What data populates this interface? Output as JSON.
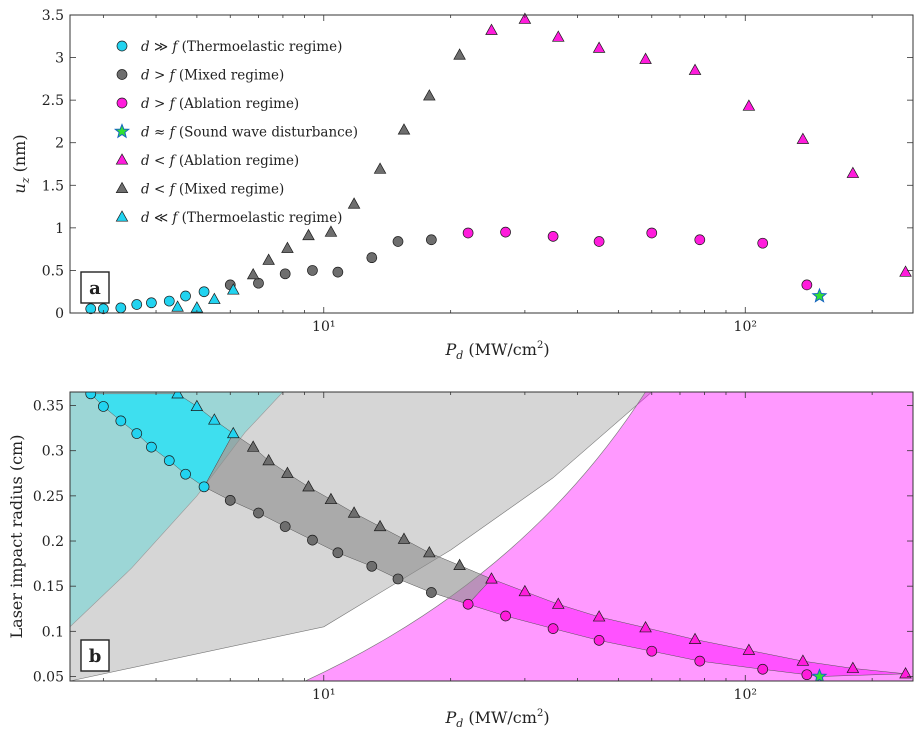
{
  "chart_data": [
    {
      "panel": "a",
      "type": "scatter",
      "xscale": "log",
      "xlim": [
        2.5,
        250
      ],
      "ylim": [
        0,
        3.5
      ],
      "xlabel": "P_d (MW/cm²)",
      "ylabel": "u_z (nm)",
      "xticks": [
        {
          "value": 10,
          "label": "10¹"
        },
        {
          "value": 100,
          "label": "10²"
        }
      ],
      "yticks": [
        0,
        0.5,
        1,
        1.5,
        2,
        2.5,
        3,
        3.5
      ],
      "ytick_labels": [
        "0",
        "0.5",
        "1",
        "1.5",
        "2",
        "2.5",
        "3",
        "3.5"
      ],
      "legend_position": "upper-left",
      "series": [
        {
          "name": "d ≫ f (Thermoelastic regime)",
          "marker": "circle",
          "color": "#22d3f0",
          "x": [
            2.8,
            3.0,
            3.3,
            3.6,
            3.9,
            4.3,
            4.7,
            5.2
          ],
          "y": [
            0.05,
            0.05,
            0.06,
            0.1,
            0.12,
            0.14,
            0.2,
            0.25
          ]
        },
        {
          "name": "d > f (Mixed regime)",
          "marker": "circle",
          "color": "#6e6e6e",
          "x": [
            6.0,
            7.0,
            8.1,
            9.4,
            10.8,
            13.0,
            15.0,
            18.0
          ],
          "y": [
            0.33,
            0.35,
            0.46,
            0.5,
            0.48,
            0.65,
            0.84,
            0.86
          ]
        },
        {
          "name": "d > f (Ablation regime)",
          "marker": "circle",
          "color": "#ff1cdc",
          "x": [
            22.0,
            27.0,
            35.0,
            45.0,
            60.0,
            78.0,
            110.0,
            140.0
          ],
          "y": [
            0.94,
            0.95,
            0.9,
            0.84,
            0.94,
            0.86,
            0.82,
            0.33
          ]
        },
        {
          "name": "d ≈ f (Sound wave disturbance)",
          "marker": "star",
          "color": "#33e033",
          "x": [
            150.0
          ],
          "y": [
            0.2
          ]
        },
        {
          "name": "d < f (Ablation regime)",
          "marker": "triangle",
          "color": "#ff1cdc",
          "x": [
            25.0,
            30.0,
            36.0,
            45.0,
            58.0,
            76.0,
            102.0,
            137.0,
            180.0,
            240.0
          ],
          "y": [
            3.32,
            3.45,
            3.24,
            3.11,
            2.98,
            2.85,
            2.43,
            2.04,
            1.64,
            0.48
          ]
        },
        {
          "name": "d < f (Mixed regime)",
          "marker": "triangle",
          "color": "#6e6e6e",
          "x": [
            6.8,
            7.4,
            8.2,
            9.2,
            10.4,
            11.8,
            13.6,
            15.5,
            17.8,
            21.0
          ],
          "y": [
            0.45,
            0.62,
            0.76,
            0.91,
            0.95,
            1.28,
            1.69,
            2.15,
            2.55,
            3.03
          ]
        },
        {
          "name": "d ≪ f (Thermoelastic regime)",
          "marker": "triangle",
          "color": "#22d3f0",
          "x": [
            4.5,
            5.0,
            5.5,
            6.1
          ],
          "y": [
            0.07,
            0.06,
            0.16,
            0.27
          ]
        }
      ]
    },
    {
      "panel": "b",
      "type": "scatter",
      "xscale": "log",
      "xlim": [
        2.5,
        250
      ],
      "ylim": [
        0.045,
        0.365
      ],
      "xlabel": "P_d (MW/cm²)",
      "ylabel": "Laser impact radius (cm)",
      "xticks": [
        {
          "value": 10,
          "label": "10¹"
        },
        {
          "value": 100,
          "label": "10²"
        }
      ],
      "yticks": [
        0.05,
        0.1,
        0.15,
        0.2,
        0.25,
        0.3,
        0.35
      ],
      "ytick_labels": [
        "0.05",
        "0.1",
        "0.15",
        "0.2",
        "0.25",
        "0.3",
        "0.35"
      ],
      "regions": [
        {
          "regime": "Thermoelastic",
          "color": "#00ffff",
          "opacity": 0.5,
          "upper_boundary": {
            "x": [
              2.5,
              3.5,
              5.0,
              6.5,
              8.0
            ],
            "y": [
              0.105,
              0.17,
              0.25,
              0.32,
              0.365
            ]
          }
        },
        {
          "regime": "Mixed",
          "color": "#b4b4b4",
          "opacity": 0.55,
          "upper_boundary": {
            "x": [
              2.5,
              10.0,
              20.0,
              35.0,
              60.0
            ],
            "y": [
              0.045,
              0.105,
              0.19,
              0.27,
              0.365
            ]
          }
        },
        {
          "regime": "Ablation",
          "color": "#ff00ff",
          "opacity": 0.4,
          "lower_boundary": {
            "x": [
              8.0,
              20.0,
              40.0,
              80.0,
              250.0
            ],
            "y": [
              0.045,
              0.09,
              0.135,
              0.175,
              0.23
            ]
          }
        }
      ],
      "bands": [
        {
          "color": "#00e5ff",
          "opacity": 0.6,
          "lower": {
            "x": [
              2.8,
              3.0,
              3.3,
              3.6,
              3.9,
              4.3,
              4.7,
              5.2
            ],
            "y": [
              0.363,
              0.349,
              0.333,
              0.319,
              0.304,
              0.289,
              0.274,
              0.26
            ]
          },
          "upper": {
            "x": [
              4.5,
              5.0,
              5.5,
              6.1
            ],
            "y": [
              0.363,
              0.349,
              0.334,
              0.319
            ]
          }
        },
        {
          "color": "#8c8c8c",
          "opacity": 0.6,
          "lower": {
            "x": [
              5.2,
              6.0,
              7.0,
              8.1,
              9.4,
              10.8,
              13.0,
              15.0,
              18.0,
              22.0
            ],
            "y": [
              0.26,
              0.245,
              0.231,
              0.216,
              0.201,
              0.187,
              0.172,
              0.158,
              0.143,
              0.13
            ]
          },
          "upper": {
            "x": [
              6.1,
              6.8,
              7.4,
              8.2,
              9.2,
              10.4,
              11.8,
              13.6,
              15.5,
              17.8,
              21.0,
              25.0
            ],
            "y": [
              0.319,
              0.304,
              0.289,
              0.275,
              0.26,
              0.246,
              0.231,
              0.216,
              0.202,
              0.187,
              0.173,
              0.158
            ]
          }
        },
        {
          "color": "#ff33ff",
          "opacity": 0.7,
          "lower": {
            "x": [
              22.0,
              27.0,
              35.0,
              45.0,
              60.0,
              78.0,
              110.0,
              140.0,
              150.0
            ],
            "y": [
              0.13,
              0.117,
              0.103,
              0.09,
              0.078,
              0.067,
              0.058,
              0.052,
              0.05
            ]
          },
          "upper": {
            "x": [
              25.0,
              30.0,
              36.0,
              45.0,
              58.0,
              76.0,
              102.0,
              137.0,
              180.0,
              240.0
            ],
            "y": [
              0.158,
              0.144,
              0.13,
              0.116,
              0.104,
              0.091,
              0.079,
              0.067,
              0.059,
              0.053
            ]
          }
        }
      ],
      "series": [
        {
          "name": "d ≫ f (Thermoelastic regime)",
          "marker": "circle",
          "color": "#22d3f0",
          "x": [
            2.8,
            3.0,
            3.3,
            3.6,
            3.9,
            4.3,
            4.7,
            5.2
          ],
          "y": [
            0.363,
            0.349,
            0.333,
            0.319,
            0.304,
            0.289,
            0.274,
            0.26
          ]
        },
        {
          "name": "d > f (Mixed regime)",
          "marker": "circle",
          "color": "#6e6e6e",
          "x": [
            6.0,
            7.0,
            8.1,
            9.4,
            10.8,
            13.0,
            15.0,
            18.0
          ],
          "y": [
            0.245,
            0.231,
            0.216,
            0.201,
            0.187,
            0.172,
            0.158,
            0.143
          ]
        },
        {
          "name": "d > f (Ablation regime)",
          "marker": "circle",
          "color": "#ff1cdc",
          "x": [
            22.0,
            27.0,
            35.0,
            45.0,
            60.0,
            78.0,
            110.0,
            140.0
          ],
          "y": [
            0.13,
            0.117,
            0.103,
            0.09,
            0.078,
            0.067,
            0.058,
            0.052
          ]
        },
        {
          "name": "d ≈ f (Sound wave disturbance)",
          "marker": "star",
          "color": "#33e033",
          "x": [
            150.0
          ],
          "y": [
            0.05
          ]
        },
        {
          "name": "d < f (Ablation regime)",
          "marker": "triangle",
          "color": "#ff1cdc",
          "x": [
            25.0,
            30.0,
            36.0,
            45.0,
            58.0,
            76.0,
            102.0,
            137.0,
            180.0,
            240.0
          ],
          "y": [
            0.158,
            0.144,
            0.13,
            0.116,
            0.104,
            0.091,
            0.079,
            0.067,
            0.059,
            0.053
          ]
        },
        {
          "name": "d < f (Mixed regime)",
          "marker": "triangle",
          "color": "#6e6e6e",
          "x": [
            6.8,
            7.4,
            8.2,
            9.2,
            10.4,
            11.8,
            13.6,
            15.5,
            17.8,
            21.0
          ],
          "y": [
            0.304,
            0.289,
            0.275,
            0.26,
            0.246,
            0.231,
            0.216,
            0.202,
            0.187,
            0.173
          ]
        },
        {
          "name": "d ≪ f (Thermoelastic regime)",
          "marker": "triangle",
          "color": "#22d3f0",
          "x": [
            4.5,
            5.0,
            5.5,
            6.1
          ],
          "y": [
            0.363,
            0.349,
            0.334,
            0.319
          ]
        }
      ]
    }
  ]
}
